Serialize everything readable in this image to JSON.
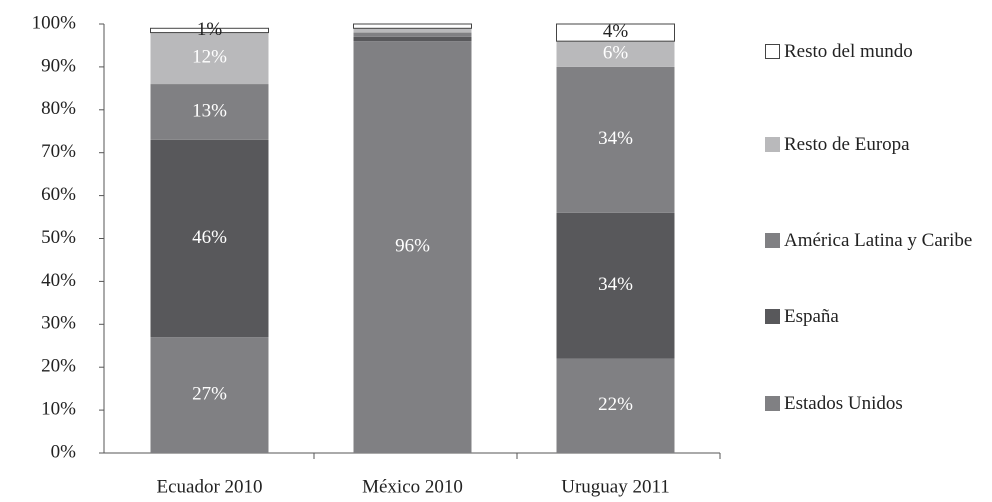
{
  "chart_data": {
    "type": "stacked_bar",
    "categories": [
      "Ecuador 2010",
      "México 2010",
      "Uruguay 2011"
    ],
    "series": [
      {
        "name": "Estados Unidos",
        "color": "#808083",
        "values": [
          27,
          96,
          22
        ],
        "value_labels": [
          "27%",
          "96%",
          "22%"
        ]
      },
      {
        "name": "España",
        "color": "#58585b",
        "values": [
          46,
          1,
          34
        ],
        "value_labels": [
          "46%",
          null,
          "34%"
        ]
      },
      {
        "name": "América Latina y Caribe",
        "color": "#808083",
        "values": [
          13,
          1,
          34
        ],
        "value_labels": [
          "13%",
          null,
          "34%"
        ]
      },
      {
        "name": "Resto de Europa",
        "color": "#b9b9bb",
        "values": [
          12,
          1,
          6
        ],
        "value_labels": [
          "12%",
          null,
          "6%"
        ]
      },
      {
        "name": "Resto del mundo",
        "color": "#ffffff",
        "values": [
          1,
          1,
          4
        ],
        "value_labels": [
          "1%",
          null,
          "4%"
        ]
      }
    ],
    "ylim": [
      0,
      100
    ],
    "yticks": [
      {
        "value": 0,
        "label": "0%"
      },
      {
        "value": 10,
        "label": "10%"
      },
      {
        "value": 20,
        "label": "20%"
      },
      {
        "value": 30,
        "label": "30%"
      },
      {
        "value": 40,
        "label": "40%"
      },
      {
        "value": 50,
        "label": "50%"
      },
      {
        "value": 60,
        "label": "60%"
      },
      {
        "value": 70,
        "label": "70%"
      },
      {
        "value": 80,
        "label": "80%"
      },
      {
        "value": 90,
        "label": "90%"
      },
      {
        "value": 100,
        "label": "100%"
      }
    ],
    "grid": false,
    "legend": "right"
  }
}
